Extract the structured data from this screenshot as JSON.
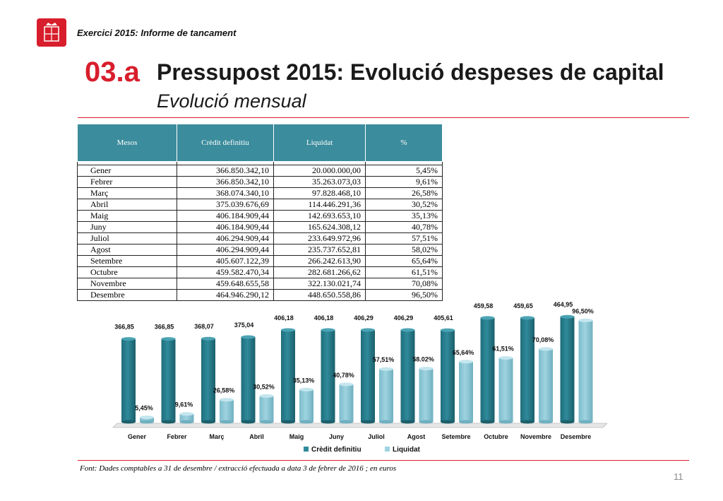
{
  "header": {
    "label": "Exercici 2015: Informe de tancament",
    "section_number": "03.a",
    "title": "Pressupost 2015: Evolució despeses de capital",
    "subtitle": "Evolució mensual"
  },
  "colors": {
    "accent": "#d81e2c",
    "table_header": "#3b8c9c",
    "credit_series": "#2f8a9a",
    "paid_series": "#9fd3e0"
  },
  "table": {
    "columns": [
      "Mesos",
      "Crèdit definitiu",
      "Liquidat",
      "%"
    ],
    "rows": [
      [
        "Gener",
        "366.850.342,10",
        "20.000.000,00",
        "5,45%"
      ],
      [
        "Febrer",
        "366.850.342,10",
        "35.263.073,03",
        "9,61%"
      ],
      [
        "Març",
        "368.074.340,10",
        "97.828.468,10",
        "26,58%"
      ],
      [
        "Abril",
        "375.039.676,69",
        "114.446.291,36",
        "30,52%"
      ],
      [
        "Maig",
        "406.184.909,44",
        "142.693.653,10",
        "35,13%"
      ],
      [
        "Juny",
        "406.184.909,44",
        "165.624.308,12",
        "40,78%"
      ],
      [
        "Juliol",
        "406.294.909,44",
        "233.649.972,96",
        "57,51%"
      ],
      [
        "Agost",
        "406.294.909,44",
        "235.737.652,81",
        "58,02%"
      ],
      [
        "Setembre",
        "405.607.122,39",
        "266.242.613,90",
        "65,64%"
      ],
      [
        "Octubre",
        "459.582.470,34",
        "282.681.266,62",
        "61,51%"
      ],
      [
        "Novembre",
        "459.648.655,58",
        "322.130.021,74",
        "70,08%"
      ],
      [
        "Desembre",
        "464.946.290,12",
        "448.650.558,86",
        "96,50%"
      ]
    ]
  },
  "chart_data": {
    "type": "bar",
    "categories": [
      "Gener",
      "Febrer",
      "Març",
      "Abril",
      "Maig",
      "Juny",
      "Juliol",
      "Agost",
      "Setembre",
      "Octubre",
      "Novembre",
      "Desembre"
    ],
    "series": [
      {
        "name": "Crèdit definitiu",
        "values": [
          366.85,
          366.85,
          368.07,
          375.04,
          406.18,
          406.18,
          406.29,
          406.29,
          405.61,
          459.58,
          459.65,
          464.95
        ],
        "labels": [
          "366,85",
          "366,85",
          "368,07",
          "375,04",
          "406,18",
          "406,18",
          "406,29",
          "406,29",
          "405,61",
          "459,58",
          "459,65",
          "464,95"
        ]
      },
      {
        "name": "Liquidat",
        "values": [
          20.0,
          35.26,
          97.83,
          114.45,
          142.69,
          165.62,
          233.65,
          235.74,
          266.24,
          282.68,
          322.13,
          448.65
        ],
        "labels": [
          "5,45%",
          "9,61%",
          "26,58%",
          "30,52%",
          "35,13%",
          "40,78%",
          "57,51%",
          "58.02%",
          "65,64%",
          "61,51%",
          "70,08%",
          "96,50%"
        ]
      }
    ],
    "ylim": [
      0,
      500
    ],
    "grid": false,
    "legend": "bottom"
  },
  "footnote": "Font: Dades comptables a 31 de desembre / extracció efectuada a data 3 de febrer de 2016 ; en euros",
  "page_number": "11"
}
